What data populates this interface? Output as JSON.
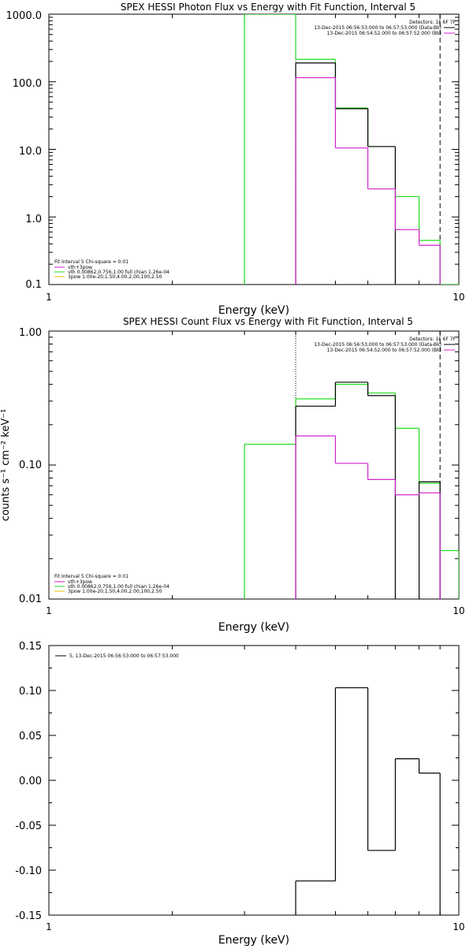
{
  "colors": {
    "black": "#000000",
    "magenta": "#d020d0",
    "green": "#22dd22",
    "yellow": "#e0c000"
  },
  "chart_data": [
    {
      "type": "line",
      "title": "SPEX HESSI Photon Flux vs Energy with Fit Function, Interval 5",
      "xlabel": "Energy (keV)",
      "ylabel": "",
      "xscale": "log",
      "yscale": "log",
      "xlim": [
        1,
        10
      ],
      "ylim": [
        0.1,
        1000
      ],
      "xticks": [
        "1",
        "10"
      ],
      "yticks": [
        "0.1",
        "1.0",
        "10.0",
        "100.0",
        "1000.0"
      ],
      "legend_top_right": {
        "heading": "Detectors: 1F 6F 7F",
        "entries": [
          "13-Dec-2015 06:56:53.000 to 06:57:53.000 (Data-Bk)",
          "13-Dec-2015 06:54:52.000 to 06:57:52.000 (Bk)"
        ]
      },
      "legend_bottom_left": {
        "heading": "Fit Interval 5   Chi-square = 0.01",
        "entries": [
          "vth+3pow",
          "vth 0.00862,0.756,1.00  full chian 1.26e-04",
          "3pow 1.00e-20,1.50,4.00,2.00,100,2.50"
        ]
      },
      "edges": [
        3,
        4,
        5,
        6,
        7,
        8,
        9,
        10
      ],
      "series": [
        {
          "color": "black",
          "values": [
            null,
            190,
            40,
            11,
            null,
            null,
            null
          ]
        },
        {
          "color": "magenta",
          "values": [
            null,
            115,
            10.5,
            2.6,
            0.65,
            0.38,
            null
          ]
        },
        {
          "color": "green",
          "values": [
            1000,
            215,
            41,
            11,
            2.0,
            0.45,
            0.1
          ]
        }
      ],
      "vlines": [
        {
          "x": 4,
          "style": "dotted"
        },
        {
          "x": 9,
          "style": "dashed"
        }
      ]
    },
    {
      "type": "line",
      "title": "SPEX HESSI Count Flux vs Energy with Fit Function, Interval 5",
      "xlabel": "Energy (keV)",
      "ylabel": "counts s⁻¹ cm⁻² keV⁻¹",
      "xscale": "log",
      "yscale": "log",
      "xlim": [
        1,
        10
      ],
      "ylim": [
        0.01,
        1
      ],
      "xticks": [
        "1",
        "10"
      ],
      "yticks": [
        "0.01",
        "0.10",
        "1.00"
      ],
      "legend_top_right": {
        "heading": "Detectors: 1F 6F 7F",
        "entries": [
          "13-Dec-2015 06:56:53.000 to 06:57:53.000 (Data-Bk)",
          "13-Dec-2015 06:54:52.000 to 06:57:52.000 (Bk)"
        ]
      },
      "legend_bottom_left": {
        "heading": "Fit Interval 5   Chi-square = 0.01",
        "entries": [
          "vth+3pow",
          "vth 0.00862,0.756,1.00  full chian 1.26e-04",
          "3pow 1.00e-20,1.50,4.00,2.00,100,2.50"
        ]
      },
      "edges": [
        3,
        4,
        5,
        6,
        7,
        8,
        9,
        10
      ],
      "series": [
        {
          "color": "black",
          "values": [
            null,
            0.275,
            0.415,
            0.33,
            null,
            0.075,
            null
          ]
        },
        {
          "color": "magenta",
          "values": [
            null,
            0.165,
            0.103,
            0.078,
            0.06,
            0.062,
            null
          ]
        },
        {
          "color": "green",
          "values": [
            0.143,
            0.312,
            0.4,
            0.345,
            0.188,
            0.073,
            0.023
          ]
        }
      ],
      "vlines": [
        {
          "x": 4,
          "style": "dotted"
        },
        {
          "x": 9,
          "style": "dashed"
        }
      ]
    },
    {
      "type": "line",
      "title": "",
      "xlabel": "Energy (keV)",
      "ylabel": "",
      "xscale": "log",
      "yscale": "linear",
      "xlim": [
        1,
        10
      ],
      "ylim": [
        -0.15,
        0.15
      ],
      "xticks": [
        "1",
        "10"
      ],
      "yticks": [
        "-0.15",
        "-0.10",
        "-0.05",
        "0.00",
        "0.05",
        "0.10",
        "0.15"
      ],
      "legend_top_left": {
        "entries": [
          "5, 13-Dec-2015 06:56:53.000 to 06:57:53.000"
        ]
      },
      "edges": [
        4,
        5,
        6,
        7,
        8,
        9
      ],
      "series": [
        {
          "color": "black",
          "values": [
            -0.112,
            0.103,
            -0.078,
            0.024,
            0.008
          ]
        }
      ]
    }
  ]
}
